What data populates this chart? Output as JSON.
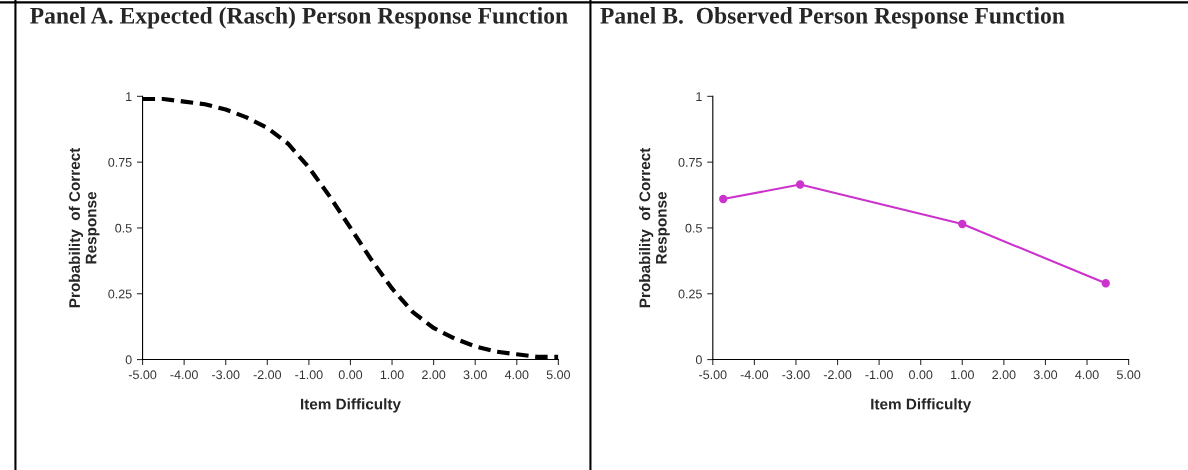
{
  "chart_data": [
    {
      "type": "line",
      "title": "Panel A. Expected (Rasch) Person Response Function",
      "xlabel": "Item Difficulty",
      "ylabel": "Probability  of Correct\nResponse",
      "line_style": "dashed",
      "marker": "none",
      "grid": false,
      "series": [
        {
          "color": "#000000",
          "x": [
            -5,
            -4.5,
            -4,
            -3.5,
            -3,
            -2.5,
            -2,
            -1.5,
            -1,
            -0.5,
            0,
            0.5,
            1,
            1.5,
            2,
            2.5,
            3,
            3.5,
            4,
            4.5,
            5
          ],
          "values": [
            0.99,
            0.99,
            0.98,
            0.97,
            0.95,
            0.92,
            0.88,
            0.82,
            0.73,
            0.62,
            0.5,
            0.38,
            0.27,
            0.18,
            0.12,
            0.08,
            0.05,
            0.03,
            0.02,
            0.01,
            0.01
          ]
        }
      ],
      "xlim": [
        -5,
        5
      ],
      "xticks": [
        {
          "value": -5,
          "label": "-5.00"
        },
        {
          "value": -4,
          "label": "-4.00"
        },
        {
          "value": -3,
          "label": "-3.00"
        },
        {
          "value": -2,
          "label": "-2.00"
        },
        {
          "value": -1,
          "label": "-1.00"
        },
        {
          "value": 0,
          "label": "0.00"
        },
        {
          "value": 1,
          "label": "1.00"
        },
        {
          "value": 2,
          "label": "2.00"
        },
        {
          "value": 3,
          "label": "3.00"
        },
        {
          "value": 4,
          "label": "4.00"
        },
        {
          "value": 5,
          "label": "5.00"
        }
      ],
      "ylim": [
        0,
        1
      ],
      "yticks": [
        0,
        0.25,
        0.5,
        0.75,
        1
      ]
    },
    {
      "type": "line",
      "title": "Panel B.  Observed Person Response Function",
      "xlabel": "Item Difficulty",
      "ylabel": "Probability  of Correct\nResponse",
      "line_style": "solid",
      "marker": "circle",
      "grid": false,
      "series": [
        {
          "color": "#cc33cc",
          "x": [
            -4.75,
            -2.9,
            1.0,
            4.45
          ],
          "values": [
            0.61,
            0.665,
            0.515,
            0.29
          ]
        }
      ],
      "xlim": [
        -5,
        5
      ],
      "xticks": [
        {
          "value": -5,
          "label": "-5.00"
        },
        {
          "value": -4,
          "label": "-4.00"
        },
        {
          "value": -3,
          "label": "-3.00"
        },
        {
          "value": -2,
          "label": "-2.00"
        },
        {
          "value": -1,
          "label": "-1.00"
        },
        {
          "value": 0,
          "label": "0.00"
        },
        {
          "value": 1,
          "label": "1.00"
        },
        {
          "value": 2,
          "label": "2.00"
        },
        {
          "value": 3,
          "label": "3.00"
        },
        {
          "value": 4,
          "label": "4.00"
        },
        {
          "value": 5,
          "label": "5.00"
        }
      ],
      "ylim": [
        0,
        1
      ],
      "yticks": [
        0,
        0.25,
        0.5,
        0.75,
        1
      ]
    }
  ]
}
